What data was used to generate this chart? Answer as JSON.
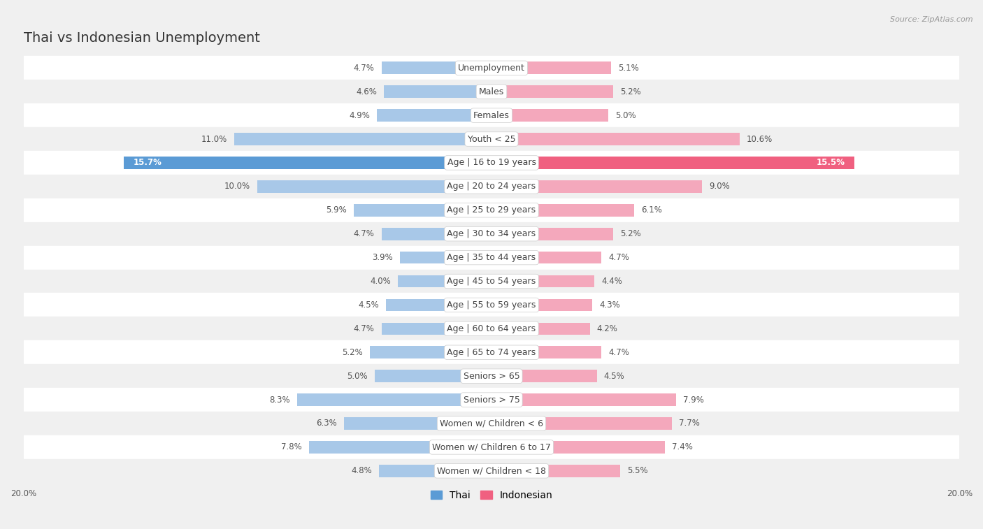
{
  "title": "Thai vs Indonesian Unemployment",
  "source": "Source: ZipAtlas.com",
  "categories": [
    "Unemployment",
    "Males",
    "Females",
    "Youth < 25",
    "Age | 16 to 19 years",
    "Age | 20 to 24 years",
    "Age | 25 to 29 years",
    "Age | 30 to 34 years",
    "Age | 35 to 44 years",
    "Age | 45 to 54 years",
    "Age | 55 to 59 years",
    "Age | 60 to 64 years",
    "Age | 65 to 74 years",
    "Seniors > 65",
    "Seniors > 75",
    "Women w/ Children < 6",
    "Women w/ Children 6 to 17",
    "Women w/ Children < 18"
  ],
  "thai_values": [
    4.7,
    4.6,
    4.9,
    11.0,
    15.7,
    10.0,
    5.9,
    4.7,
    3.9,
    4.0,
    4.5,
    4.7,
    5.2,
    5.0,
    8.3,
    6.3,
    7.8,
    4.8
  ],
  "indonesian_values": [
    5.1,
    5.2,
    5.0,
    10.6,
    15.5,
    9.0,
    6.1,
    5.2,
    4.7,
    4.4,
    4.3,
    4.2,
    4.7,
    4.5,
    7.9,
    7.7,
    7.4,
    5.5
  ],
  "highlight_indices": [
    4
  ],
  "thai_color": "#a8c8e8",
  "indonesian_color": "#f4a8bc",
  "thai_color_highlight": "#5b9bd5",
  "indonesian_color_highlight": "#f06080",
  "max_val": 20.0,
  "bg_color": "#f0f0f0",
  "row_color_even": "#ffffff",
  "row_color_odd": "#f0f0f0",
  "label_color": "#555555",
  "title_fontsize": 14,
  "label_fontsize": 9,
  "value_fontsize": 8.5,
  "legend_fontsize": 10
}
